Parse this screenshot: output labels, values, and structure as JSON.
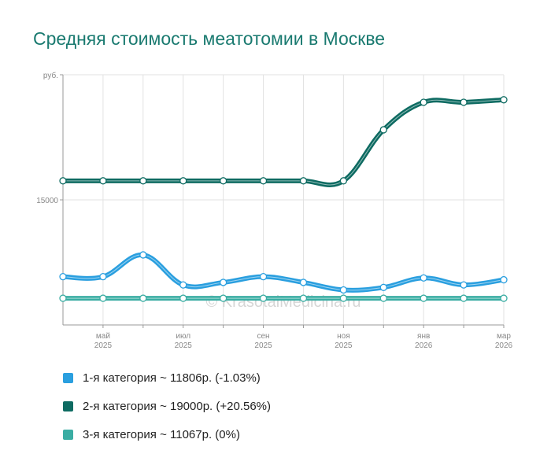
{
  "chart_data": {
    "type": "line",
    "title": "Средняя стоимость меатотомии в Москве",
    "ylabel": "руб.",
    "y_ticks": [
      {
        "value": 15000,
        "label": "15000"
      }
    ],
    "ylim": [
      10000,
      20000
    ],
    "x_ticks": [
      {
        "index": 1,
        "line1": "май",
        "line2": "2025"
      },
      {
        "index": 3,
        "line1": "июл",
        "line2": "2025"
      },
      {
        "index": 5,
        "line1": "сен",
        "line2": "2025"
      },
      {
        "index": 7,
        "line1": "ноя",
        "line2": "2025"
      },
      {
        "index": 9,
        "line1": "янв",
        "line2": "2026"
      },
      {
        "index": 11,
        "line1": "мар",
        "line2": "2026"
      }
    ],
    "categories": [
      "2025-04",
      "2025-05",
      "2025-06",
      "2025-07",
      "2025-08",
      "2025-09",
      "2025-10",
      "2025-11",
      "2025-12",
      "2026-01",
      "2026-02",
      "2026-03"
    ],
    "series": [
      {
        "name": "1-я категория",
        "color": "#2a9fdf",
        "values": [
          11929,
          11929,
          12800,
          11600,
          11700,
          11929,
          11700,
          11400,
          11500,
          11879,
          11600,
          11806
        ]
      },
      {
        "name": "2-я категория",
        "color": "#0e6b62",
        "values": [
          15760,
          15760,
          15760,
          15760,
          15760,
          15760,
          15760,
          15760,
          17800,
          18900,
          18900,
          19000
        ]
      },
      {
        "name": "3-я категория",
        "color": "#3aada3",
        "values": [
          11067,
          11067,
          11067,
          11067,
          11067,
          11067,
          11067,
          11067,
          11067,
          11067,
          11067,
          11067
        ]
      }
    ],
    "watermark": "© KrasotaiMedicina.ru"
  },
  "legend": [
    {
      "text": "1-я категория ~ 11806р. (-1.03%)",
      "color": "#2a9fdf"
    },
    {
      "text": "2-я категория ~ 19000р. (+20.56%)",
      "color": "#0e6b62"
    },
    {
      "text": "3-я категория ~ 11067р. (0%)",
      "color": "#3aada3"
    }
  ]
}
